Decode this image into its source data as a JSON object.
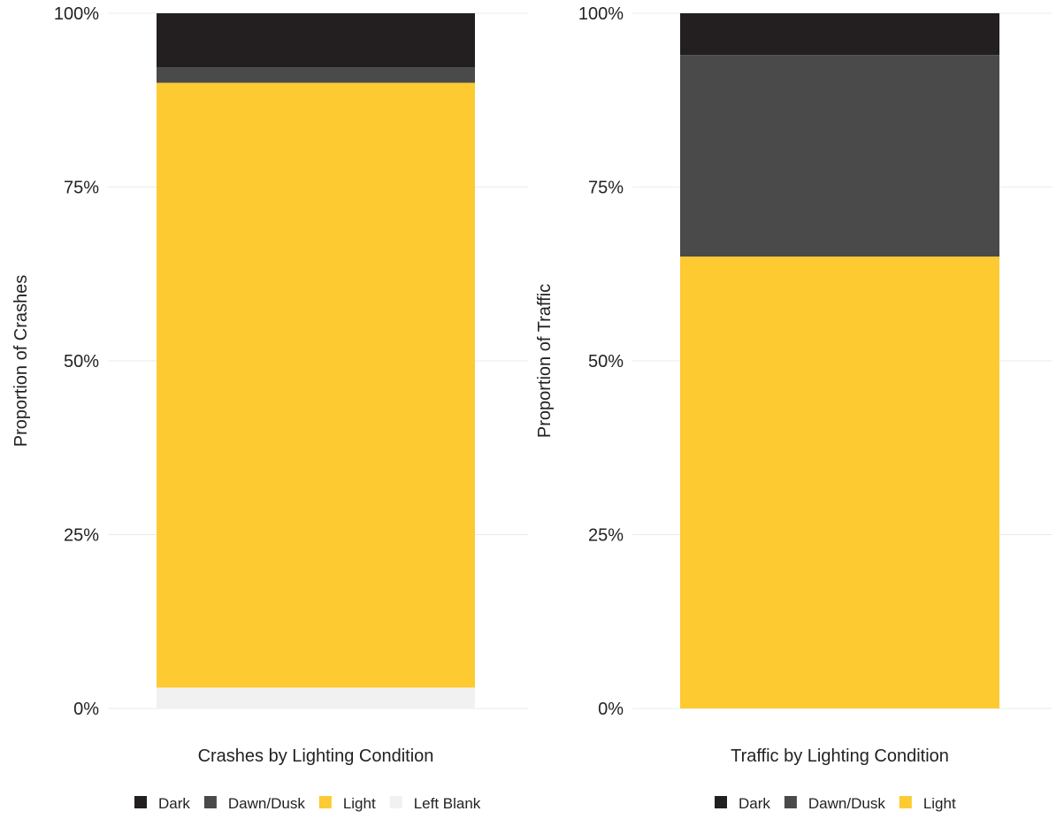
{
  "colors": {
    "Dark": "#231f20",
    "Dawn/Dusk": "#4a4a4a",
    "Light": "#fdca32",
    "Left Blank": "#f1f1f1",
    "grid": "#ebebeb",
    "text": "#222222"
  },
  "chart_data": [
    {
      "type": "bar",
      "stacked": true,
      "orientation": "vertical",
      "categories": [
        ""
      ],
      "xlabel": "Crashes by Lighting Condition",
      "ylabel": "Proportion of Crashes",
      "ylim": [
        0,
        1
      ],
      "yticks": [
        "0%",
        "25%",
        "50%",
        "75%",
        "100%"
      ],
      "grid": true,
      "legend_position": "bottom",
      "legend": [
        "Dark",
        "Dawn/Dusk",
        "Light",
        "Left Blank"
      ],
      "series": [
        {
          "name": "Left Blank",
          "values": [
            0.03
          ]
        },
        {
          "name": "Light",
          "values": [
            0.87
          ]
        },
        {
          "name": "Dawn/Dusk",
          "values": [
            0.022
          ]
        },
        {
          "name": "Dark",
          "values": [
            0.078
          ]
        }
      ]
    },
    {
      "type": "bar",
      "stacked": true,
      "orientation": "vertical",
      "categories": [
        ""
      ],
      "xlabel": "Traffic by Lighting Condition",
      "ylabel": "Proportion of Traffic",
      "ylim": [
        0,
        1
      ],
      "yticks": [
        "0%",
        "25%",
        "50%",
        "75%",
        "100%"
      ],
      "grid": true,
      "legend_position": "bottom",
      "legend": [
        "Dark",
        "Dawn/Dusk",
        "Light"
      ],
      "series": [
        {
          "name": "Light",
          "values": [
            0.65
          ]
        },
        {
          "name": "Dawn/Dusk",
          "values": [
            0.29
          ]
        },
        {
          "name": "Dark",
          "values": [
            0.06
          ]
        }
      ]
    }
  ]
}
